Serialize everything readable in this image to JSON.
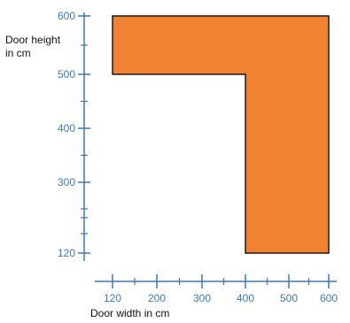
{
  "chart_data": {
    "type": "area",
    "xlabel": "Door width in cm",
    "ylabel_lines": [
      "Door height",
      "in cm"
    ],
    "x_ticks": [
      120,
      200,
      300,
      400,
      500,
      600
    ],
    "y_ticks": [
      120,
      300,
      400,
      500,
      600
    ],
    "region": {
      "vertices": [
        [
          120,
          600
        ],
        [
          600,
          600
        ],
        [
          600,
          120
        ],
        [
          400,
          120
        ],
        [
          400,
          500
        ],
        [
          120,
          500
        ]
      ]
    },
    "colors": {
      "fill": "#f08232",
      "stroke": "#1a1a1a",
      "axis": "#3a78bd"
    },
    "grid": false,
    "legend": "none"
  }
}
